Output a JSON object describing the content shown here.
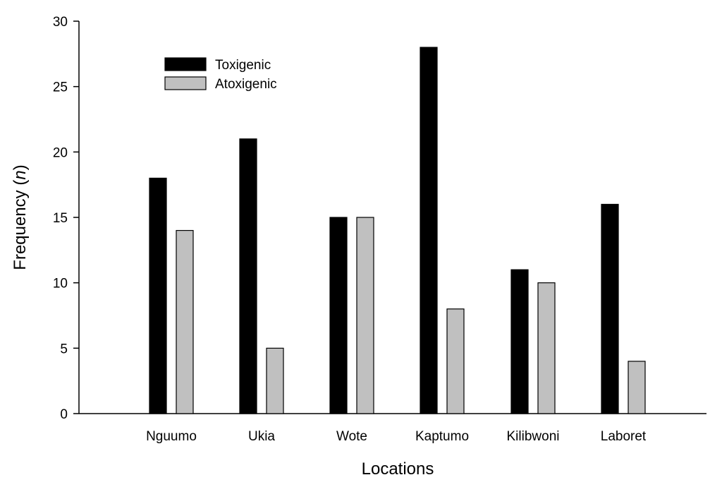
{
  "chart_data": {
    "type": "bar",
    "categories": [
      "Nguumo",
      "Ukia",
      "Wote",
      "Kaptumo",
      "Kilibwoni",
      "Laboret"
    ],
    "series": [
      {
        "name": "Toxigenic",
        "values": [
          18,
          21,
          15,
          28,
          11,
          16
        ],
        "color": "#000000"
      },
      {
        "name": "Atoxigenic",
        "values": [
          14,
          5,
          15,
          8,
          10,
          4
        ],
        "color": "#c0c0c0"
      }
    ],
    "xlabel": "Locations",
    "ylabel_main": "Frequency (",
    "ylabel_italic": "n",
    "ylabel_close": ")",
    "ylim": [
      0,
      30
    ],
    "yticks": [
      0,
      5,
      10,
      15,
      20,
      25,
      30
    ],
    "legend_position": "top-left",
    "grid": false
  }
}
